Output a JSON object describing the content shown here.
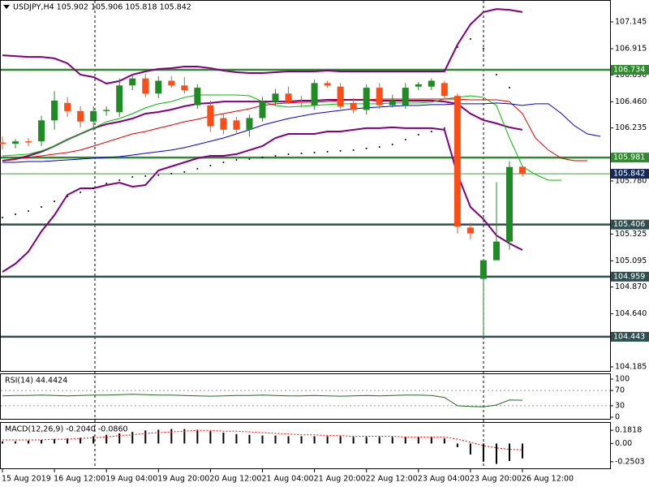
{
  "chart_data": [
    {
      "type": "candlestick",
      "title": "USDJPY,H4 105.902 105.906 105.818 105.842",
      "categories": [
        "15 Aug 2019",
        null,
        null,
        null,
        "16 Aug 12:00",
        null,
        null,
        null,
        "19 Aug 04:00",
        null,
        null,
        null,
        "19 Aug 20:00",
        null,
        null,
        null,
        "20 Aug 12:00",
        null,
        null,
        null,
        "21 Aug 04:00",
        null,
        null,
        null,
        "21 Aug 20:00",
        null,
        null,
        null,
        "22 Aug 12:00",
        null,
        null,
        null,
        "23 Aug 04:00",
        null,
        null,
        null,
        "23 Aug 20:00",
        null,
        null,
        null,
        "26 Aug 12:00",
        null,
        null,
        null,
        null,
        null,
        null
      ],
      "open": [
        106.11,
        106.1,
        106.12,
        106.12,
        106.3,
        106.45,
        106.38,
        106.29,
        106.38,
        106.37,
        106.6,
        106.66,
        106.53,
        106.64,
        106.6,
        106.43,
        106.43,
        106.32,
        106.3,
        106.22,
        106.32,
        106.46,
        106.53,
        106.46,
        106.43,
        106.62,
        106.59,
        106.45,
        106.39,
        106.58,
        106.43,
        106.43,
        106.59,
        106.59,
        106.62,
        106.51,
        105.38,
        104.94,
        105.1,
        105.26,
        105.902,
        null,
        null,
        null,
        null,
        null,
        null
      ],
      "high": [
        106.16,
        106.14,
        106.15,
        106.34,
        106.55,
        106.5,
        106.42,
        106.42,
        106.42,
        106.66,
        106.7,
        106.7,
        106.68,
        106.68,
        106.67,
        106.61,
        106.47,
        106.36,
        106.33,
        106.35,
        106.5,
        106.57,
        106.59,
        106.51,
        106.65,
        106.64,
        106.62,
        106.49,
        106.61,
        106.62,
        106.52,
        106.62,
        106.63,
        106.66,
        106.64,
        106.53,
        105.42,
        105.11,
        105.77,
        105.95,
        105.906,
        null,
        null,
        null,
        null,
        null,
        null
      ],
      "low": [
        106.05,
        106.06,
        106.08,
        106.08,
        106.22,
        106.33,
        106.24,
        106.21,
        106.34,
        106.33,
        106.56,
        106.5,
        106.49,
        106.58,
        106.53,
        106.4,
        106.2,
        106.18,
        106.19,
        106.16,
        106.29,
        106.43,
        106.44,
        106.41,
        106.39,
        106.58,
        106.4,
        106.36,
        106.35,
        106.4,
        106.41,
        106.4,
        106.56,
        106.56,
        106.48,
        105.33,
        105.28,
        104.443,
        105.1,
        105.19,
        105.818,
        null,
        null,
        null,
        null,
        null,
        null
      ],
      "close": [
        106.1,
        106.12,
        106.11,
        106.3,
        106.47,
        106.38,
        106.29,
        106.38,
        106.39,
        106.6,
        106.66,
        106.53,
        106.64,
        106.6,
        106.56,
        106.58,
        106.25,
        106.22,
        106.22,
        106.32,
        106.46,
        106.53,
        106.46,
        106.45,
        106.62,
        106.6,
        106.42,
        106.39,
        106.58,
        106.43,
        106.47,
        106.58,
        106.61,
        106.64,
        106.51,
        105.39,
        105.33,
        105.1,
        105.26,
        105.9,
        105.842,
        null,
        null,
        null,
        null,
        null,
        null
      ],
      "up_color": "#1f8b24",
      "down_color": "#ff4d1a",
      "series": [
        {
          "style": "line",
          "color": "#800080",
          "width": 2,
          "values": [
            106.859,
            106.852,
            106.845,
            106.845,
            106.832,
            106.79,
            106.692,
            106.671,
            106.616,
            106.637,
            106.692,
            106.72,
            106.741,
            106.748,
            106.762,
            106.762,
            106.748,
            106.727,
            106.713,
            106.706,
            106.706,
            106.713,
            106.72,
            106.72,
            106.72,
            106.727,
            106.72,
            106.72,
            106.72,
            106.72,
            106.72,
            106.72,
            106.72,
            106.72,
            106.72,
            106.95,
            107.124,
            107.229,
            107.256,
            107.249,
            107.229,
            null,
            null,
            null,
            null,
            null,
            null
          ]
        },
        {
          "style": "line",
          "color": "#800080",
          "width": 2,
          "values": [
            105.954,
            105.968,
            105.996,
            106.031,
            106.079,
            106.135,
            106.184,
            106.233,
            106.267,
            106.288,
            106.316,
            106.358,
            106.372,
            106.393,
            106.421,
            106.442,
            106.449,
            106.462,
            106.462,
            106.462,
            106.462,
            106.462,
            106.462,
            106.469,
            106.469,
            106.476,
            106.476,
            106.476,
            106.476,
            106.469,
            106.469,
            106.469,
            106.469,
            106.469,
            106.462,
            106.442,
            106.358,
            106.302,
            106.274,
            106.24,
            106.219,
            null,
            null,
            null,
            null,
            null,
            null
          ]
        },
        {
          "style": "line",
          "color": "#800080",
          "width": 2,
          "values": [
            105.0,
            105.07,
            105.174,
            105.348,
            105.487,
            105.661,
            105.717,
            105.717,
            105.745,
            105.766,
            105.731,
            105.745,
            105.87,
            105.905,
            105.94,
            105.975,
            105.996,
            105.996,
            106.01,
            106.045,
            106.079,
            106.149,
            106.184,
            106.184,
            106.184,
            106.205,
            106.205,
            106.219,
            106.233,
            106.233,
            106.24,
            106.233,
            106.233,
            106.233,
            106.219,
            105.836,
            105.557,
            105.453,
            105.313,
            105.244,
            105.188,
            null,
            null,
            null,
            null,
            null,
            null
          ]
        },
        {
          "style": "line",
          "color": "#00c000",
          "width": 1,
          "values": [
            105.996,
            106.003,
            106.01,
            106.038,
            106.079,
            106.135,
            106.184,
            106.233,
            106.288,
            106.316,
            106.358,
            106.407,
            106.442,
            106.462,
            106.497,
            106.518,
            106.518,
            106.518,
            106.518,
            106.511,
            106.462,
            106.428,
            106.414,
            106.421,
            106.428,
            106.435,
            106.442,
            106.442,
            106.442,
            106.442,
            106.449,
            106.449,
            106.449,
            106.456,
            106.483,
            106.497,
            106.511,
            106.497,
            106.428,
            106.149,
            105.905,
            105.836,
            105.787,
            105.787,
            null,
            null,
            null
          ]
        },
        {
          "style": "line",
          "color": "#e00000",
          "width": 1,
          "values": [
            105.954,
            105.968,
            105.982,
            105.996,
            106.01,
            106.024,
            106.045,
            106.079,
            106.114,
            106.149,
            106.184,
            106.205,
            106.233,
            106.26,
            106.288,
            106.309,
            106.337,
            106.358,
            106.379,
            106.4,
            106.428,
            106.442,
            106.449,
            106.456,
            106.456,
            106.462,
            106.469,
            106.476,
            106.476,
            106.483,
            106.483,
            106.483,
            106.483,
            106.483,
            106.483,
            106.483,
            106.476,
            106.476,
            106.476,
            106.462,
            106.358,
            106.149,
            106.045,
            105.975,
            105.954,
            105.954,
            null
          ]
        },
        {
          "style": "line",
          "color": "#0000c8",
          "width": 1,
          "values": [
            105.94,
            105.94,
            105.947,
            105.947,
            105.954,
            105.961,
            105.968,
            105.975,
            105.982,
            105.989,
            106.003,
            106.017,
            106.031,
            106.045,
            106.066,
            106.093,
            106.121,
            106.149,
            106.184,
            106.219,
            106.26,
            106.288,
            106.316,
            106.337,
            106.358,
            106.372,
            106.386,
            106.4,
            106.407,
            106.414,
            106.421,
            106.428,
            106.428,
            106.435,
            106.435,
            106.442,
            106.442,
            106.442,
            106.449,
            106.442,
            106.428,
            106.442,
            106.442,
            106.358,
            106.254,
            106.184,
            106.163
          ]
        },
        {
          "style": "dots",
          "color": "#000000",
          "width": 1,
          "values": [
            105.466,
            105.494,
            105.522,
            105.557,
            105.606,
            105.648,
            105.682,
            105.717,
            105.759,
            105.787,
            105.815,
            105.822,
            105.829,
            105.843,
            105.857,
            105.884,
            105.912,
            105.94,
            105.961,
            105.968,
            105.982,
            105.996,
            106.01,
            106.017,
            106.024,
            106.031,
            106.038,
            106.045,
            106.059,
            106.072,
            106.093,
            106.135,
            106.177,
            106.205,
            106.233,
            106.929,
            106.999,
            106.915,
            106.692,
            106.581,
            null,
            null,
            null,
            null,
            null,
            null,
            null
          ]
        }
      ],
      "ylim": [
        104.143,
        107.333
      ],
      "yticks": [
        107.145,
        106.915,
        {
          "value": 106.69,
          "label": "106.690"
        },
        {
          "value": 106.46,
          "label": "106.460"
        },
        106.235,
        {
          "value": 105.78,
          "label": "105.780"
        },
        105.325,
        105.095,
        {
          "value": 104.87,
          "label": "104.870"
        },
        {
          "value": 104.64,
          "label": "104.640"
        },
        104.185
      ],
      "levels": [
        {
          "value": 106.734,
          "color": "#2e8b2e"
        },
        {
          "value": 105.981,
          "color": "#2e8b2e"
        },
        {
          "value": 105.406,
          "color": "#2f4f4f"
        },
        {
          "value": 104.959,
          "color": "#2f4f4f"
        },
        {
          "value": 104.443,
          "color": "#2f4f4f"
        }
      ],
      "last_price": {
        "value": 105.842,
        "color": "#14285a",
        "line_color": "#2e8b2e"
      }
    },
    {
      "type": "line",
      "title": "RSI(14) 44.4424",
      "color": "#1f6b1f",
      "values": [
        56,
        57,
        57,
        58,
        57,
        56,
        57,
        58,
        58,
        59,
        60,
        59,
        58,
        58,
        57,
        56,
        55,
        56,
        57,
        57,
        58,
        57,
        56,
        56,
        57,
        56,
        55,
        56,
        57,
        56,
        57,
        58,
        58,
        57,
        52,
        30,
        28,
        27,
        32,
        45,
        44.4424
      ],
      "ylim": [
        -6.4,
        114.9
      ],
      "yticks": [
        100,
        0
      ],
      "levels": [
        70,
        30
      ]
    },
    {
      "type": "macd",
      "title": "MACD(12,26,9) -0.2040 -0.0860",
      "color": "#000000",
      "signal_color": "#ff0000",
      "values": [
        0.03,
        0.03,
        0.04,
        0.05,
        0.06,
        0.07,
        0.08,
        0.1,
        0.12,
        0.14,
        0.16,
        0.18,
        0.19,
        0.2,
        0.2,
        0.19,
        0.17,
        0.15,
        0.13,
        0.12,
        0.11,
        0.11,
        0.1,
        0.1,
        0.1,
        0.1,
        0.1,
        0.09,
        0.09,
        0.09,
        0.09,
        0.09,
        0.09,
        0.09,
        0.07,
        -0.05,
        -0.15,
        -0.25,
        -0.28,
        -0.24,
        -0.204
      ],
      "signal": [
        0.05,
        0.05,
        0.05,
        0.05,
        0.06,
        0.06,
        0.07,
        0.08,
        0.09,
        0.11,
        0.12,
        0.14,
        0.15,
        0.16,
        0.17,
        0.18,
        0.18,
        0.17,
        0.17,
        0.16,
        0.15,
        0.14,
        0.13,
        0.12,
        0.12,
        0.11,
        0.11,
        0.1,
        0.1,
        0.1,
        0.1,
        0.09,
        0.09,
        0.09,
        0.09,
        0.06,
        0.02,
        -0.03,
        -0.06,
        -0.08,
        -0.086
      ],
      "ylim": [
        -0.352,
        0.295
      ],
      "yticks": [
        0.1818,
        {
          "value": 0,
          "label": "0.00"
        },
        -0.2503
      ]
    }
  ]
}
